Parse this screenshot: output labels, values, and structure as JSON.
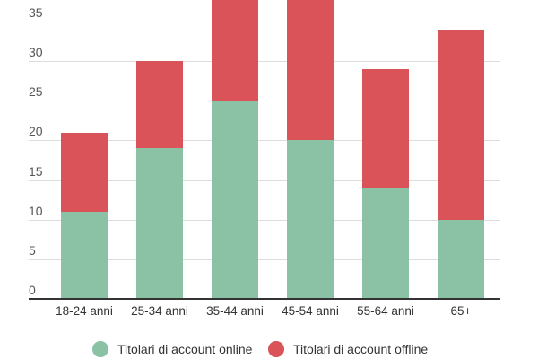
{
  "chart_data": {
    "type": "bar",
    "stacked": true,
    "title": "",
    "xlabel": "",
    "ylabel": "",
    "categories": [
      "18-24 anni",
      "25-34 anni",
      "35-44 anni",
      "45-54 anni",
      "55-64 anni",
      "65+"
    ],
    "series": [
      {
        "name": "Titolari di account online",
        "color": "#8BC1A5",
        "values": [
          11,
          19,
          25,
          20,
          14,
          10
        ]
      },
      {
        "name": "Titolari di account offline",
        "color": "#D95358",
        "values": [
          10,
          11,
          14,
          19,
          15,
          24
        ]
      }
    ],
    "yticks": [
      0,
      5,
      10,
      15,
      20,
      25,
      30,
      35
    ],
    "ylim": [
      0,
      37.7
    ],
    "grid": true,
    "legend_position": "bottom"
  },
  "legend": {
    "online": "Titolari di account online",
    "offline": "Titolari di account offline"
  }
}
